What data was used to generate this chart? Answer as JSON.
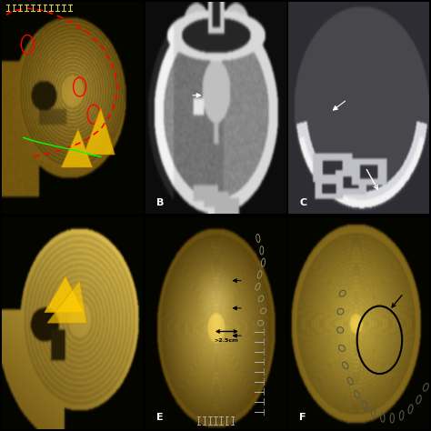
{
  "background_color": "#000000",
  "panel_labels": [
    "",
    "B",
    "C",
    "",
    "E",
    "F"
  ],
  "label_color": "#ffffff",
  "label_fontsize": 8,
  "figsize": [
    4.74,
    4.74
  ],
  "dpi": 100,
  "skull_gold": "#c8a832",
  "skull_dark": "#7a6010",
  "skull_mid": "#b09020",
  "contour_color": "#d4b040",
  "ct_brain_outer": "#d8d8d8",
  "ct_brain_mid": "#888880",
  "ct_brain_inner": "#606060",
  "ct_dark": "#333333",
  "ct_black": "#111111",
  "ct_white": "#f0f0f0",
  "ct_bone": "#e8e8e8"
}
